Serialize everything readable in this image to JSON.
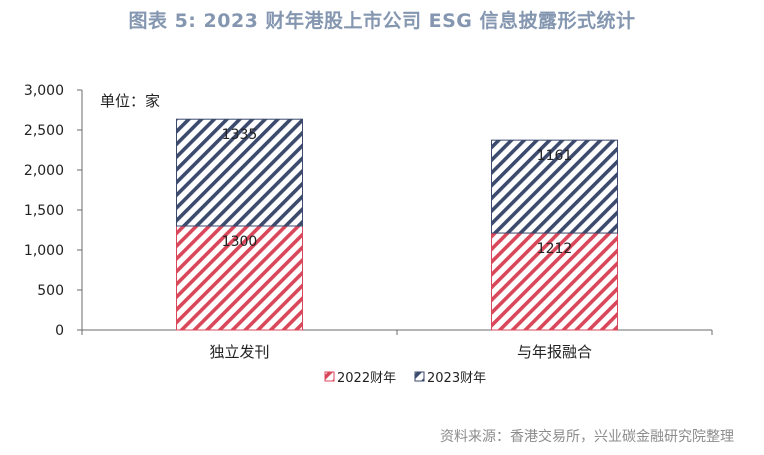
{
  "title": "图表 5:  2023 财年港股上市公司 ESG 信息披露形式统计",
  "source": "资料来源：香港交易所，兴业碳金融研究院整理",
  "chart_data": {
    "type": "bar",
    "stacked": true,
    "unit_note": "单位：家",
    "categories": [
      "独立发刊",
      "与年报融合"
    ],
    "series": [
      {
        "name": "2022财年",
        "values": [
          1300,
          1212
        ],
        "color": "#d9475a"
      },
      {
        "name": "2023财年",
        "values": [
          1335,
          1161
        ],
        "color": "#3c4a6e"
      }
    ],
    "ylim": [
      0,
      3000
    ],
    "yticks": [
      0,
      500,
      1000,
      1500,
      2000,
      2500,
      3000
    ],
    "ytick_labels": [
      "0",
      "500",
      "1,000",
      "1,500",
      "2,000",
      "2,500",
      "3,000"
    ],
    "legend_position": "bottom",
    "grid": false
  }
}
